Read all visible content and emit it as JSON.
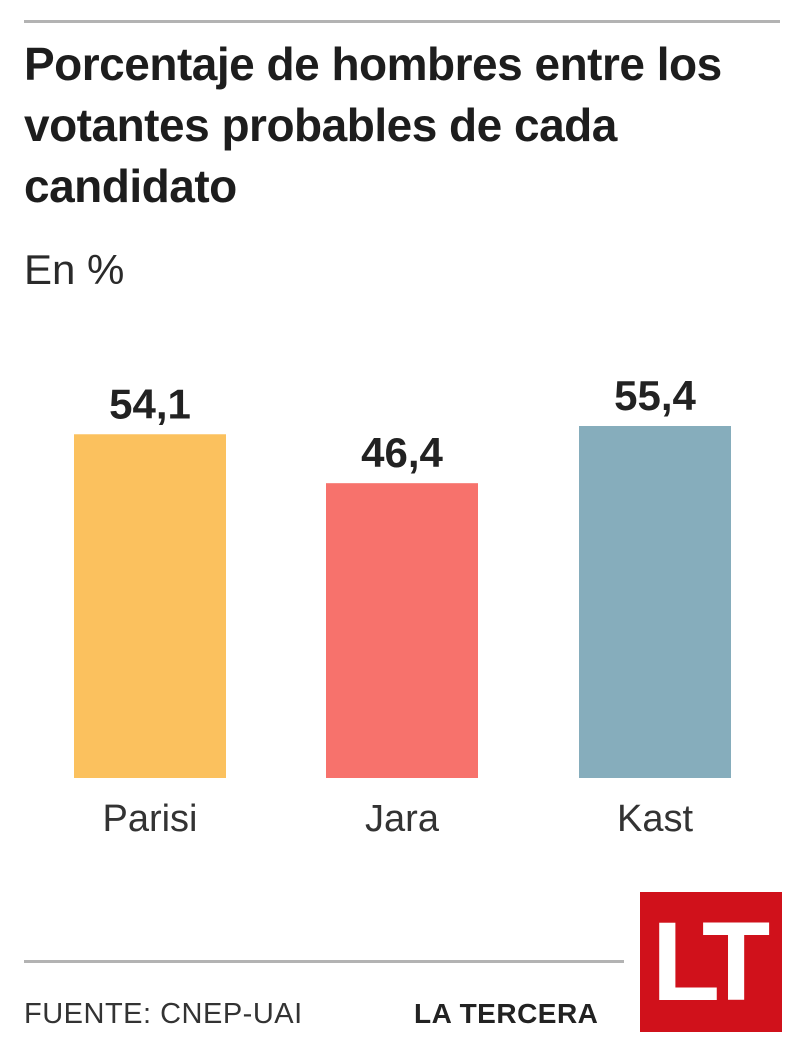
{
  "header": {
    "title": "Porcentaje de hombres entre los votantes probables de cada candidato",
    "subtitle": "En %"
  },
  "chart_data": {
    "type": "bar",
    "title": "Porcentaje de hombres entre los votantes probables de cada candidato",
    "subtitle": "En %",
    "categories": [
      "Parisi",
      "Jara",
      "Kast"
    ],
    "values": [
      54.1,
      46.4,
      55.4
    ],
    "value_labels": [
      "54,1",
      "46,4",
      "55,4"
    ],
    "colors": [
      "#fbc15e",
      "#f7726c",
      "#86adbc"
    ],
    "ylim": [
      0,
      55.4
    ],
    "grid": false,
    "legend": "none"
  },
  "footer": {
    "source": "FUENTE: CNEP-UAI",
    "brand": "LA TERCERA",
    "logo_text": "LT",
    "logo_color": "#d0111b"
  }
}
